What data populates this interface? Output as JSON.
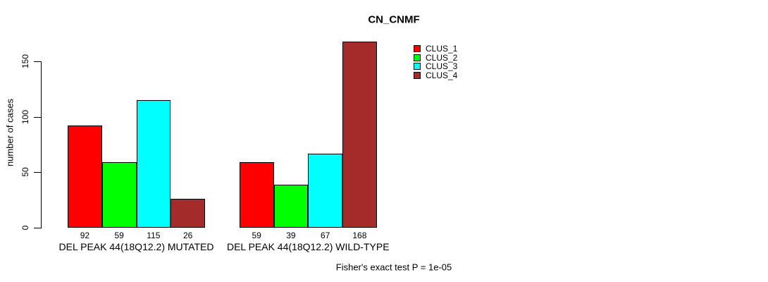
{
  "chart_data": {
    "type": "bar",
    "title": "CN_CNMF",
    "ylabel": "number of cases",
    "xlabel": "",
    "categories": [
      "DEL PEAK 44(18Q12.2) MUTATED",
      "DEL PEAK 44(18Q12.2) WILD-TYPE"
    ],
    "series": [
      {
        "name": "CLUS_1",
        "color": "#FF0000",
        "values": [
          92,
          59
        ]
      },
      {
        "name": "CLUS_2",
        "color": "#00FF00",
        "values": [
          59,
          39
        ]
      },
      {
        "name": "CLUS_3",
        "color": "#00FFFF",
        "values": [
          115,
          67
        ]
      },
      {
        "name": "CLUS_4",
        "color": "#A52A2A",
        "values": [
          26,
          168
        ]
      }
    ],
    "yticks": [
      0,
      50,
      100,
      150
    ],
    "ylim": [
      0,
      150
    ],
    "grid": false,
    "bar_value_labels_shown": true,
    "legend_position": "top-right",
    "bar_border_color": "#000000",
    "axis_color": "#000000",
    "annotation": "Fisher's exact test P = 1e-05"
  }
}
